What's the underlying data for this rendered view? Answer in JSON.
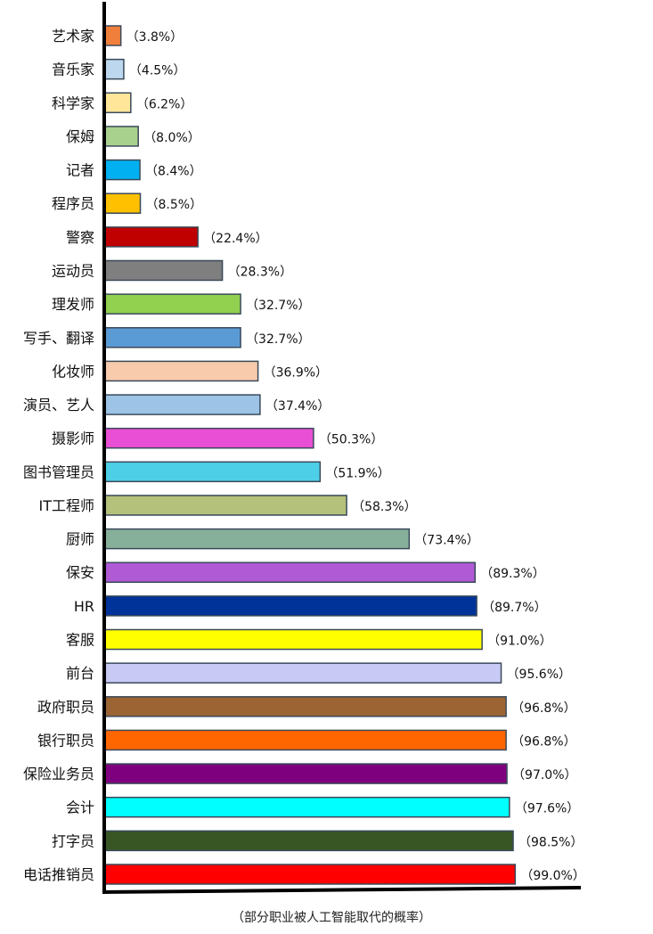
{
  "chart_data": {
    "type": "bar",
    "orientation": "horizontal",
    "title": "",
    "xlabel": "",
    "ylabel": "",
    "xlim": [
      0,
      100
    ],
    "grid": false,
    "legend": "none",
    "caption": "（部分职业被人工智能取代的概率）",
    "categories": [
      "艺术家",
      "音乐家",
      "科学家",
      "保姆",
      "记者",
      "程序员",
      "警察",
      "运动员",
      "理发师",
      "写手、翻译",
      "化妆师",
      "演员、艺人",
      "摄影师",
      "图书管理员",
      "IT工程师",
      "厨师",
      "保安",
      "HR",
      "客服",
      "前台",
      "政府职员",
      "银行职员",
      "保险业务员",
      "会计",
      "打字员",
      "电话推销员"
    ],
    "values": [
      3.8,
      4.5,
      6.2,
      8.0,
      8.4,
      8.5,
      22.4,
      28.3,
      32.7,
      32.7,
      36.9,
      37.4,
      50.3,
      51.9,
      58.3,
      73.4,
      89.3,
      89.7,
      91.0,
      95.6,
      96.8,
      96.8,
      97.0,
      97.6,
      98.5,
      99.0
    ],
    "value_labels": [
      "（3.8%）",
      "（4.5%）",
      "（6.2%）",
      "（8.0%）",
      "（8.4%）",
      "（8.5%）",
      "（22.4%）",
      "（28.3%）",
      "（32.7%）",
      "（32.7%）",
      "（36.9%）",
      "（37.4%）",
      "（50.3%）",
      "（51.9%）",
      "（58.3%）",
      "（73.4%）",
      "（89.3%）",
      "（89.7%）",
      "（91.0%）",
      "（95.6%）",
      "（96.8%）",
      "（96.8%）",
      "（97.0%）",
      "（97.6%）",
      "（98.5%）",
      "（99.0%）"
    ],
    "colors": [
      "#f07f3c",
      "#bdd7ee",
      "#ffe699",
      "#a9d18e",
      "#00b0f0",
      "#ffc000",
      "#c00000",
      "#7f7f7f",
      "#92d050",
      "#5b9bd5",
      "#f8cbad",
      "#9dc3e6",
      "#e84fd4",
      "#4dcfe8",
      "#b4c17a",
      "#87b09a",
      "#b05ad6",
      "#003399",
      "#ffff00",
      "#c9c9f5",
      "#9c6433",
      "#ff6600",
      "#7f007f",
      "#00ffff",
      "#375623",
      "#ff0000"
    ]
  }
}
